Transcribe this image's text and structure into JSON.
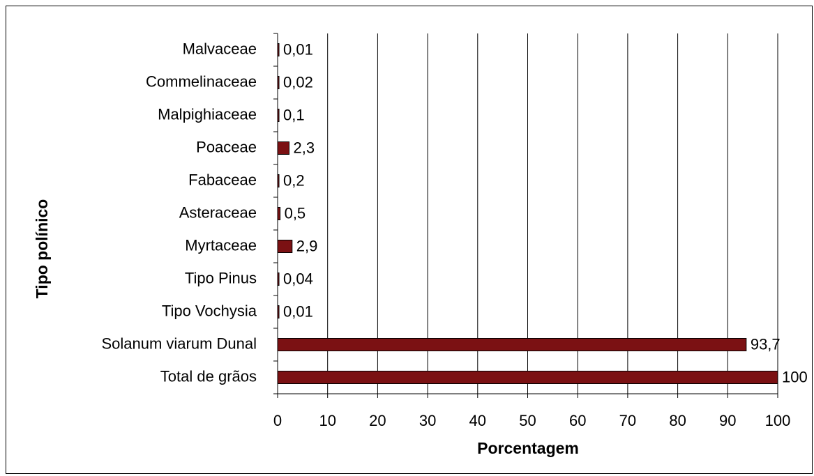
{
  "chart_data": {
    "type": "bar",
    "orientation": "horizontal",
    "categories": [
      "Malvaceae",
      "Commelinaceae",
      "Malpighiaceae",
      "Poaceae",
      "Fabaceae",
      "Asteraceae",
      "Myrtaceae",
      "Tipo Pinus",
      "Tipo Vochysia",
      "Solanum viarum Dunal",
      "Total de grãos"
    ],
    "values": [
      0.01,
      0.02,
      0.1,
      2.3,
      0.2,
      0.5,
      2.9,
      0.04,
      0.01,
      93.7,
      100
    ],
    "value_labels": [
      "0,01",
      "0,02",
      "0,1",
      "2,3",
      "0,2",
      "0,5",
      "2,9",
      "0,04",
      "0,01",
      "93,7",
      "100"
    ],
    "color": "#7b1113",
    "xlim": [
      0,
      100
    ],
    "xticks": [
      0,
      10,
      20,
      30,
      40,
      50,
      60,
      70,
      80,
      90,
      100
    ],
    "grid": true,
    "xlabel": "Porcentagem",
    "ylabel": "Tipo polínico"
  }
}
